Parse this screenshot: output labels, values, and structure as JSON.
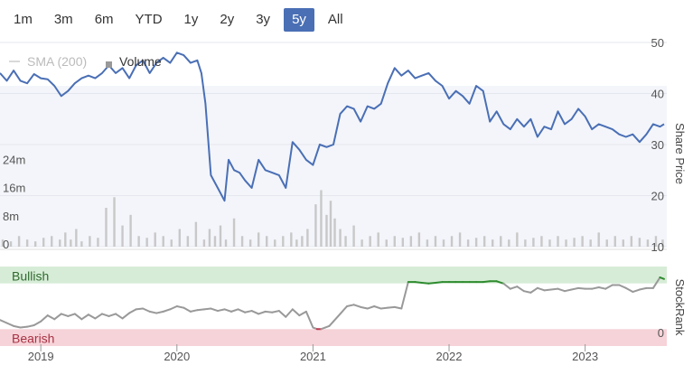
{
  "range_selector": {
    "buttons": [
      "1m",
      "3m",
      "6m",
      "YTD",
      "1y",
      "2y",
      "3y",
      "5y",
      "All"
    ],
    "active": "5y"
  },
  "colors": {
    "price_line": "#4a6fb5",
    "volume_bar": "#c8c8c8",
    "plot_bg": "#f3f5fa",
    "bullish_band": "#d7ecd7",
    "bearish_band": "#f6d3d8",
    "rank_line": "#999999",
    "rank_bullish": "#2e8b2e",
    "rank_bearish": "#c8324a",
    "active_button": "#4a6fb5"
  },
  "chart_data": [
    {
      "type": "line",
      "legend": [
        "SMA (200)",
        "Volume"
      ],
      "y_right_label": "Share Price",
      "y_right_ticks": [
        10,
        20,
        30,
        40,
        50
      ],
      "ylim": [
        10,
        50
      ],
      "volume_ticks": [
        "0",
        "8m",
        "16m",
        "24m"
      ],
      "volume_lim": [
        0,
        32
      ],
      "x_tick_labels": [
        "2019",
        "2020",
        "2021",
        "2022",
        "2023"
      ],
      "x_tick_years": [
        2019,
        2020,
        2021,
        2022,
        2023
      ],
      "xlim": [
        2018.7,
        2023.6
      ],
      "series": [
        {
          "type": "line",
          "x": [
            2018.7,
            2018.75,
            2018.8,
            2018.85,
            2018.9,
            2018.95,
            2019.0,
            2019.05,
            2019.1,
            2019.15,
            2019.2,
            2019.25,
            2019.3,
            2019.35,
            2019.4,
            2019.45,
            2019.5,
            2019.55,
            2019.6,
            2019.65,
            2019.7,
            2019.75,
            2019.8,
            2019.85,
            2019.9,
            2019.95,
            2020.0,
            2020.05,
            2020.1,
            2020.15,
            2020.18,
            2020.21,
            2020.25,
            2020.3,
            2020.35,
            2020.38,
            2020.42,
            2020.46,
            2020.5,
            2020.55,
            2020.6,
            2020.65,
            2020.7,
            2020.75,
            2020.8,
            2020.85,
            2020.9,
            2020.95,
            2021.0,
            2021.05,
            2021.1,
            2021.15,
            2021.2,
            2021.25,
            2021.3,
            2021.35,
            2021.4,
            2021.45,
            2021.5,
            2021.55,
            2021.6,
            2021.65,
            2021.7,
            2021.75,
            2021.8,
            2021.85,
            2021.9,
            2021.95,
            2022.0,
            2022.05,
            2022.1,
            2022.15,
            2022.2,
            2022.25,
            2022.3,
            2022.35,
            2022.4,
            2022.45,
            2022.5,
            2022.55,
            2022.6,
            2022.65,
            2022.7,
            2022.75,
            2022.8,
            2022.85,
            2022.9,
            2022.95,
            2023.0,
            2023.05,
            2023.1,
            2023.15,
            2023.2,
            2023.25,
            2023.3,
            2023.35,
            2023.4,
            2023.45,
            2023.5,
            2023.55,
            2023.58
          ],
          "y": [
            44.0,
            42.5,
            44.5,
            42.5,
            42.0,
            43.8,
            43.0,
            42.8,
            41.5,
            39.5,
            40.5,
            42.0,
            43.0,
            43.5,
            43.0,
            44.0,
            45.5,
            44.0,
            45.0,
            43.0,
            45.5,
            46.5,
            44.0,
            46.0,
            47.0,
            46.0,
            48.0,
            47.5,
            46.0,
            46.5,
            44.0,
            38.0,
            24.0,
            21.5,
            19.0,
            27.0,
            25.0,
            24.5,
            23.0,
            21.5,
            27.0,
            25.0,
            24.5,
            24.0,
            21.5,
            30.5,
            29.0,
            27.0,
            26.0,
            30.0,
            29.5,
            30.0,
            36.0,
            37.5,
            37.0,
            34.5,
            37.5,
            37.0,
            38.0,
            42.0,
            45.0,
            43.5,
            44.5,
            43.0,
            43.5,
            44.0,
            42.5,
            41.5,
            39.0,
            40.5,
            39.5,
            38.0,
            41.5,
            40.5,
            34.5,
            36.5,
            34.0,
            33.0,
            35.0,
            33.5,
            35.0,
            31.5,
            33.5,
            33.0,
            36.5,
            34.0,
            35.0,
            37.0,
            35.5,
            33.0,
            34.0,
            33.5,
            33.0,
            32.0,
            31.5,
            32.0,
            30.5,
            32.0,
            34.0,
            33.5,
            34.0
          ]
        },
        {
          "type": "bar",
          "name": "Volume",
          "x": [
            2018.72,
            2018.78,
            2018.84,
            2018.9,
            2018.96,
            2019.02,
            2019.08,
            2019.14,
            2019.18,
            2019.22,
            2019.26,
            2019.3,
            2019.36,
            2019.42,
            2019.48,
            2019.54,
            2019.6,
            2019.66,
            2019.72,
            2019.78,
            2019.84,
            2019.9,
            2019.96,
            2020.02,
            2020.08,
            2020.14,
            2020.2,
            2020.24,
            2020.28,
            2020.32,
            2020.36,
            2020.42,
            2020.48,
            2020.54,
            2020.6,
            2020.66,
            2020.72,
            2020.78,
            2020.84,
            2020.88,
            2020.92,
            2020.96,
            2021.02,
            2021.06,
            2021.1,
            2021.13,
            2021.16,
            2021.2,
            2021.24,
            2021.3,
            2021.36,
            2021.42,
            2021.48,
            2021.54,
            2021.6,
            2021.66,
            2021.72,
            2021.78,
            2021.84,
            2021.9,
            2021.96,
            2022.02,
            2022.08,
            2022.14,
            2022.2,
            2022.26,
            2022.32,
            2022.38,
            2022.44,
            2022.5,
            2022.56,
            2022.62,
            2022.68,
            2022.74,
            2022.8,
            2022.86,
            2022.92,
            2022.98,
            2023.04,
            2023.1,
            2023.16,
            2023.22,
            2023.28,
            2023.34,
            2023.4,
            2023.46,
            2023.52,
            2023.57
          ],
          "values": [
            2,
            1.5,
            3,
            2,
            1.5,
            2.5,
            3,
            2,
            4,
            2,
            5,
            1.5,
            3,
            2.5,
            11,
            14,
            6,
            9,
            3,
            2.5,
            4,
            3,
            2,
            5,
            3,
            7,
            2,
            5,
            3,
            6,
            2,
            8,
            3,
            2,
            4,
            3,
            2,
            3,
            4,
            2,
            3,
            5,
            12,
            16,
            9,
            13,
            8,
            5,
            3,
            6,
            2,
            3,
            4,
            2,
            3,
            2.5,
            3,
            4,
            2,
            3,
            2,
            3,
            4,
            2,
            2.5,
            3,
            2,
            3,
            2,
            4,
            2,
            2.5,
            3,
            2,
            3,
            2,
            2.5,
            3,
            2,
            4,
            2,
            3,
            2,
            3,
            2.5,
            2,
            3,
            2
          ]
        }
      ]
    },
    {
      "type": "line",
      "y_right_label": "StockRank",
      "y_right_ticks": [
        0
      ],
      "band_labels": [
        "Bullish",
        "Bearish"
      ],
      "ylim": [
        0,
        100
      ],
      "bullish_threshold": 80,
      "bearish_threshold": 20,
      "x_tick_labels": [
        "2019",
        "2020",
        "2021",
        "2022",
        "2023"
      ],
      "xlim": [
        2018.7,
        2023.6
      ],
      "series": [
        {
          "type": "line",
          "x": [
            2018.7,
            2018.75,
            2018.8,
            2018.85,
            2018.9,
            2018.95,
            2019.0,
            2019.05,
            2019.1,
            2019.15,
            2019.2,
            2019.25,
            2019.3,
            2019.35,
            2019.4,
            2019.45,
            2019.5,
            2019.55,
            2019.6,
            2019.65,
            2019.7,
            2019.75,
            2019.8,
            2019.85,
            2019.9,
            2019.95,
            2020.0,
            2020.05,
            2020.1,
            2020.15,
            2020.2,
            2020.25,
            2020.3,
            2020.35,
            2020.4,
            2020.45,
            2020.5,
            2020.55,
            2020.6,
            2020.65,
            2020.7,
            2020.75,
            2020.8,
            2020.85,
            2020.9,
            2020.95,
            2021.0,
            2021.03,
            2021.06,
            2021.09,
            2021.12,
            2021.15,
            2021.2,
            2021.25,
            2021.3,
            2021.35,
            2021.4,
            2021.45,
            2021.5,
            2021.55,
            2021.6,
            2021.65,
            2021.7,
            2021.75,
            2021.8,
            2021.85,
            2021.9,
            2021.95,
            2022.0,
            2022.05,
            2022.1,
            2022.15,
            2022.2,
            2022.25,
            2022.3,
            2022.35,
            2022.4,
            2022.45,
            2022.5,
            2022.55,
            2022.6,
            2022.65,
            2022.7,
            2022.75,
            2022.8,
            2022.85,
            2022.9,
            2022.95,
            2023.0,
            2023.05,
            2023.1,
            2023.15,
            2023.2,
            2023.25,
            2023.3,
            2023.35,
            2023.4,
            2023.45,
            2023.5,
            2023.55,
            2023.58
          ],
          "y": [
            32,
            28,
            24,
            22,
            23,
            25,
            30,
            38,
            33,
            40,
            37,
            40,
            33,
            39,
            34,
            40,
            37,
            40,
            34,
            41,
            46,
            47,
            43,
            41,
            43,
            46,
            50,
            48,
            43,
            45,
            46,
            47,
            44,
            46,
            43,
            46,
            42,
            44,
            40,
            43,
            42,
            44,
            36,
            46,
            38,
            43,
            22,
            20,
            20,
            22,
            24,
            30,
            40,
            50,
            52,
            49,
            47,
            50,
            47,
            48,
            49,
            47,
            82,
            82,
            81,
            80,
            81,
            82,
            82,
            82,
            82,
            82,
            82,
            82,
            83,
            83,
            80,
            73,
            76,
            70,
            68,
            74,
            71,
            72,
            73,
            70,
            72,
            74,
            73,
            73,
            75,
            73,
            78,
            78,
            74,
            69,
            72,
            74,
            74,
            88,
            86
          ]
        }
      ]
    }
  ]
}
